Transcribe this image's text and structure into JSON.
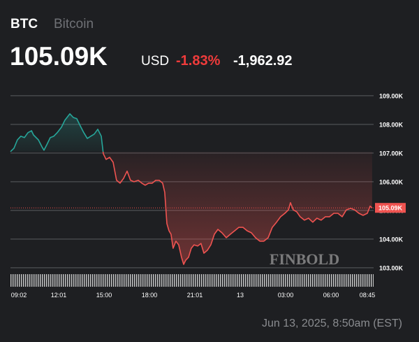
{
  "header": {
    "symbol": "BTC",
    "name": "Bitcoin",
    "price": "105.09K",
    "currency": "USD",
    "change_pct": "-1.83%",
    "change_abs": "-1,962.92"
  },
  "watermark": "FINBOLD",
  "footer": "Jun 13, 2025, 8:50am (EST)",
  "chart_data": {
    "type": "line",
    "up_color": "#26a69a",
    "down_color": "#ef5350",
    "grid": true,
    "price_tag": "105.09K",
    "xlim": [
      -0.57,
      24.15
    ],
    "xticks": [
      {
        "value": 0,
        "label": "09:02"
      },
      {
        "value": 2.71,
        "label": "12:01"
      },
      {
        "value": 5.8,
        "label": "15:00"
      },
      {
        "value": 8.89,
        "label": "18:00"
      },
      {
        "value": 11.98,
        "label": "21:01"
      },
      {
        "value": 15.07,
        "label": "13"
      },
      {
        "value": 18.16,
        "label": "03:00"
      },
      {
        "value": 21.25,
        "label": "06:00"
      },
      {
        "value": 23.72,
        "label": "08:45"
      }
    ],
    "ylim": [
      102.34,
      109.41
    ],
    "yticks": [
      {
        "value": 103,
        "label": "103.00K"
      },
      {
        "value": 104,
        "label": "104.00K"
      },
      {
        "value": 105,
        "label": "105.00K"
      },
      {
        "value": 106,
        "label": "106.00K"
      },
      {
        "value": 107,
        "label": "107.00K"
      },
      {
        "value": 108,
        "label": "108.00K"
      },
      {
        "value": 109,
        "label": "109.00K"
      }
    ],
    "x": [
      -0.57,
      -0.33,
      -0.1,
      0.14,
      0.38,
      0.62,
      0.86,
      1.0,
      1.33,
      1.57,
      1.71,
      1.9,
      2.14,
      2.38,
      2.61,
      2.9,
      3.14,
      3.47,
      3.71,
      3.94,
      4.18,
      4.42,
      4.66,
      4.9,
      5.13,
      5.37,
      5.61,
      5.75,
      5.94,
      6.18,
      6.42,
      6.65,
      6.89,
      7.13,
      7.37,
      7.6,
      7.84,
      8.13,
      8.37,
      8.6,
      8.84,
      9.08,
      9.32,
      9.55,
      9.79,
      9.93,
      10.08,
      10.22,
      10.36,
      10.5,
      10.69,
      10.88,
      11.07,
      11.22,
      11.36,
      11.55,
      11.74,
      11.93,
      12.17,
      12.4,
      12.6,
      12.83,
      13.07,
      13.31,
      13.55,
      13.83,
      14.12,
      14.4,
      14.69,
      14.97,
      15.26,
      15.54,
      15.83,
      16.11,
      16.4,
      16.68,
      16.97,
      17.25,
      17.54,
      17.82,
      18.11,
      18.35,
      18.49,
      18.68,
      18.92,
      19.15,
      19.44,
      19.72,
      20.01,
      20.29,
      20.58,
      20.87,
      21.15,
      21.44,
      21.72,
      22.01,
      22.29,
      22.58,
      22.86,
      23.15,
      23.43,
      23.72,
      23.91,
      24.05
    ],
    "values": [
      107.05,
      107.17,
      107.46,
      107.59,
      107.54,
      107.71,
      107.78,
      107.63,
      107.46,
      107.22,
      107.1,
      107.29,
      107.54,
      107.59,
      107.71,
      107.9,
      108.15,
      108.37,
      108.24,
      108.2,
      107.95,
      107.71,
      107.51,
      107.59,
      107.66,
      107.83,
      107.59,
      106.98,
      106.78,
      106.85,
      106.68,
      106.05,
      105.95,
      106.12,
      106.37,
      106.05,
      106.0,
      106.05,
      105.95,
      105.88,
      105.95,
      105.95,
      106.05,
      106.05,
      105.95,
      105.63,
      104.54,
      104.29,
      104.17,
      103.68,
      103.93,
      103.8,
      103.37,
      103.12,
      103.27,
      103.37,
      103.68,
      103.8,
      103.76,
      103.85,
      103.51,
      103.61,
      103.8,
      104.17,
      104.34,
      104.22,
      104.05,
      104.17,
      104.29,
      104.41,
      104.41,
      104.29,
      104.22,
      104.05,
      103.93,
      103.93,
      104.05,
      104.41,
      104.59,
      104.78,
      104.9,
      105.02,
      105.27,
      105.02,
      104.95,
      104.78,
      104.66,
      104.73,
      104.59,
      104.73,
      104.66,
      104.78,
      104.78,
      104.9,
      104.9,
      104.78,
      105.02,
      105.07,
      105.02,
      104.9,
      104.83,
      104.9,
      105.15,
      105.09
    ]
  }
}
